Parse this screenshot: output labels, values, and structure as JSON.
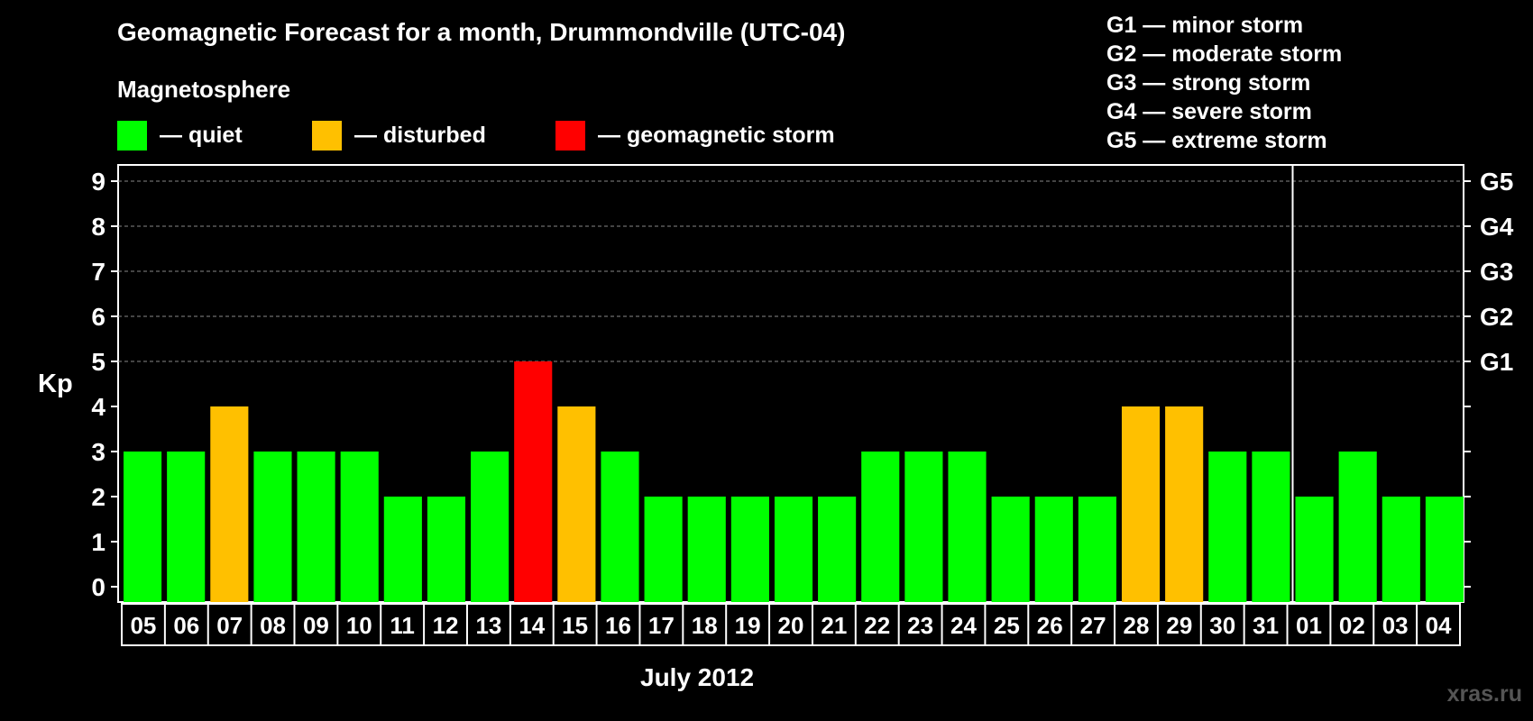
{
  "chart_data": {
    "type": "bar",
    "title": "Geomagnetic Forecast for a month, Drummondville (UTC-04)",
    "subtitle": "Magnetosphere",
    "xlabel": "July 2012",
    "ylabel": "Kp",
    "ylim": [
      0,
      9
    ],
    "yticks": [
      "0",
      "1",
      "2",
      "3",
      "4",
      "5",
      "6",
      "7",
      "8",
      "9"
    ],
    "right_axis_labels": [
      {
        "kp": 5,
        "label": "G1"
      },
      {
        "kp": 6,
        "label": "G2"
      },
      {
        "kp": 7,
        "label": "G3"
      },
      {
        "kp": 8,
        "label": "G4"
      },
      {
        "kp": 9,
        "label": "G5"
      }
    ],
    "categories": [
      "05",
      "06",
      "07",
      "08",
      "09",
      "10",
      "11",
      "12",
      "13",
      "14",
      "15",
      "16",
      "17",
      "18",
      "19",
      "20",
      "21",
      "22",
      "23",
      "24",
      "25",
      "26",
      "27",
      "28",
      "29",
      "30",
      "31",
      "01",
      "02",
      "03",
      "04"
    ],
    "values": [
      3,
      3,
      4,
      3,
      3,
      3,
      2,
      2,
      3,
      5,
      4,
      3,
      2,
      2,
      2,
      2,
      2,
      3,
      3,
      3,
      2,
      2,
      2,
      4,
      4,
      3,
      3,
      2,
      3,
      2,
      2
    ],
    "month_divider_after": "31",
    "status_colors": {
      "quiet": "#00ff00",
      "disturbed": "#ffc000",
      "storm": "#ff0000"
    },
    "legend": [
      {
        "label": "— quiet",
        "color": "#00ff00"
      },
      {
        "label": "— disturbed",
        "color": "#ffc000"
      },
      {
        "label": "— geomagnetic storm",
        "color": "#ff0000"
      }
    ],
    "g_scale": [
      "G1 — minor storm",
      "G2 — moderate storm",
      "G3 — strong storm",
      "G4 — severe storm",
      "G5 — extreme storm"
    ],
    "grid": "dashed at Kp 5-9"
  },
  "watermark": "xras.ru"
}
